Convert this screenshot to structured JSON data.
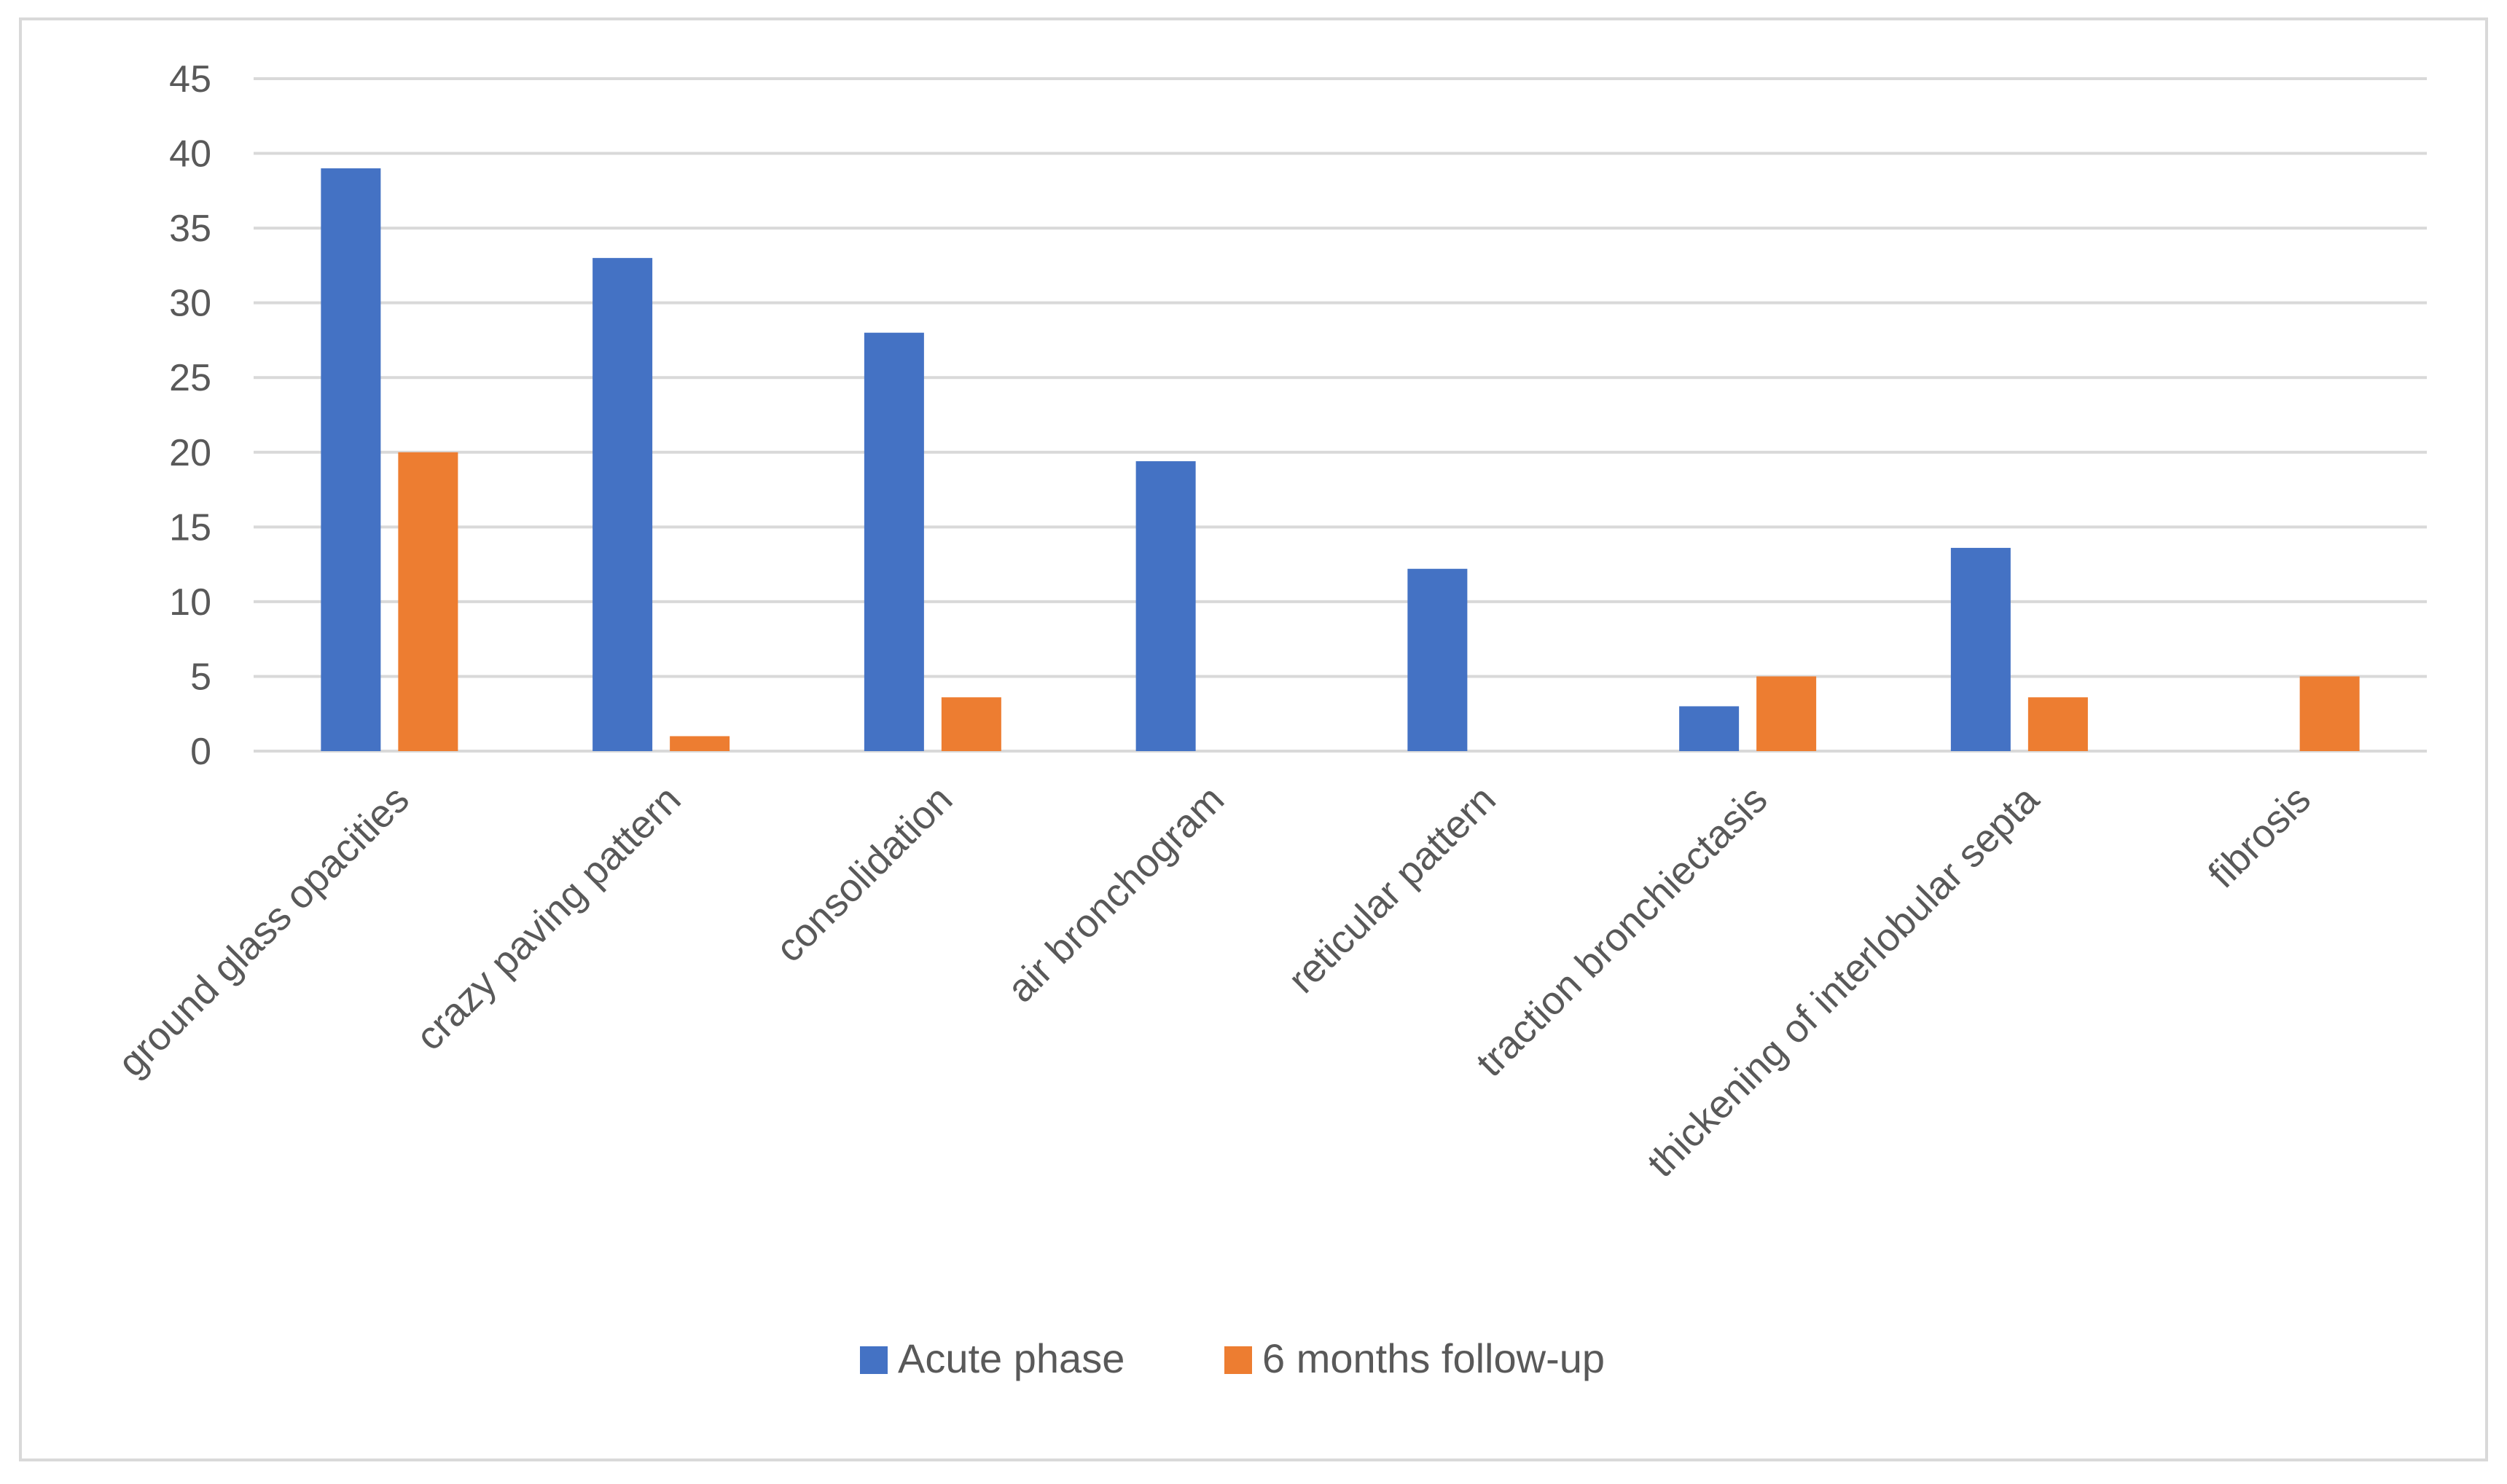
{
  "chart_data": {
    "type": "bar",
    "categories": [
      "ground glass opacities",
      "crazy paving pattern",
      "consolidation",
      "air bronchogram",
      "reticular pattern",
      "traction bronchiectasis",
      "thickening of interlobular septa",
      "fibrosis"
    ],
    "series": [
      {
        "name": "Acute phase",
        "color": "#4472c4",
        "values": [
          39,
          33,
          28,
          19.4,
          12.2,
          3,
          13.6,
          0
        ]
      },
      {
        "name": "6 months follow-up",
        "color": "#ed7d31",
        "values": [
          20,
          1,
          3.6,
          0,
          0,
          5,
          3.6,
          5
        ]
      }
    ],
    "yticks": [
      "0",
      "5",
      "10",
      "15",
      "20",
      "25",
      "30",
      "35",
      "40",
      "45"
    ],
    "ylim": [
      0,
      45
    ],
    "grid": true,
    "legend_position": "bottom",
    "title": "",
    "xlabel": "",
    "ylabel": ""
  }
}
